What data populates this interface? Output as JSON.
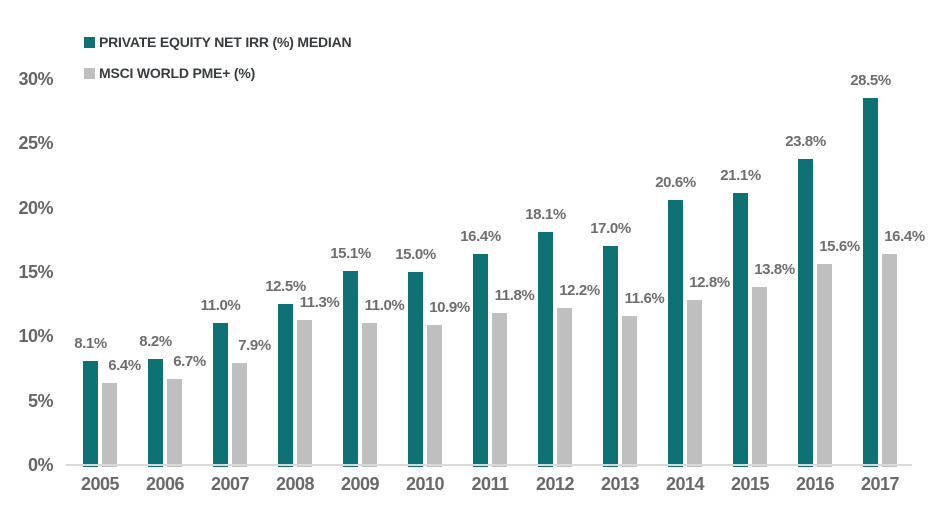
{
  "chart_data": {
    "type": "bar",
    "title": "",
    "xlabel": "",
    "ylabel": "",
    "grid": false,
    "legend_position": "top-left",
    "ylim": [
      0,
      30
    ],
    "yticks": [
      "0%",
      "5%",
      "10%",
      "15%",
      "20%",
      "25%",
      "30%"
    ],
    "categories": [
      "2005",
      "2006",
      "2007",
      "2008",
      "2009",
      "2010",
      "2011",
      "2012",
      "2013",
      "2014",
      "2015",
      "2016",
      "2017"
    ],
    "series": [
      {
        "name": "PRIVATE EQUITY NET IRR (%) MEDIAN",
        "color": "#0e7173",
        "values": [
          8.1,
          8.2,
          11.0,
          12.5,
          15.1,
          15.0,
          16.4,
          18.1,
          17.0,
          20.6,
          21.1,
          23.8,
          28.5
        ],
        "labels": [
          "8.1%",
          "8.2%",
          "11.0%",
          "12.5%",
          "15.1%",
          "15.0%",
          "16.4%",
          "18.1%",
          "17.0%",
          "20.6%",
          "21.1%",
          "23.8%",
          "28.5%"
        ]
      },
      {
        "name": "MSCI WORLD PME+ (%)",
        "color": "#bfbfbf",
        "values": [
          6.4,
          6.7,
          7.9,
          11.3,
          11.0,
          10.9,
          11.8,
          12.2,
          11.6,
          12.8,
          13.8,
          15.6,
          16.4
        ],
        "labels": [
          "6.4%",
          "6.7%",
          "7.9%",
          "11.3%",
          "11.0%",
          "10.9%",
          "11.8%",
          "12.2%",
          "11.6%",
          "12.8%",
          "13.8%",
          "15.6%",
          "16.4%"
        ]
      }
    ]
  },
  "colors": {
    "axis_line": "#d9d9d9",
    "data_label_text": "#6e6e6e",
    "tick_text": "#666666",
    "legend_text": "#393c3e",
    "background": "#ffffff"
  }
}
